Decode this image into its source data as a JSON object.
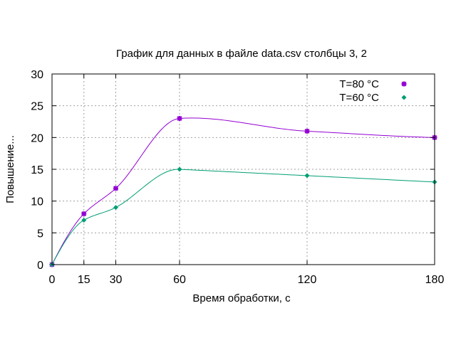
{
  "chart_data": {
    "type": "line",
    "title": "График для данных в файле data.csv столбцы 3, 2",
    "xlabel": "Время обработки, с",
    "ylabel": "Повышение...",
    "x": [
      0,
      15,
      30,
      60,
      120,
      180
    ],
    "xticks": [
      0,
      15,
      30,
      60,
      120,
      180
    ],
    "yticks": [
      0,
      5,
      10,
      15,
      20,
      25,
      30
    ],
    "xlim": [
      0,
      180
    ],
    "ylim": [
      0,
      30
    ],
    "grid": true,
    "legend_position": "top-right",
    "series": [
      {
        "name": "T=80 °C",
        "values": [
          0,
          8,
          12,
          23,
          21,
          20
        ],
        "color": "#9400d3",
        "marker": "star"
      },
      {
        "name": "T=60 °C",
        "values": [
          0,
          7,
          9,
          15,
          14,
          13
        ],
        "color": "#009e73",
        "marker": "diamond"
      }
    ]
  }
}
